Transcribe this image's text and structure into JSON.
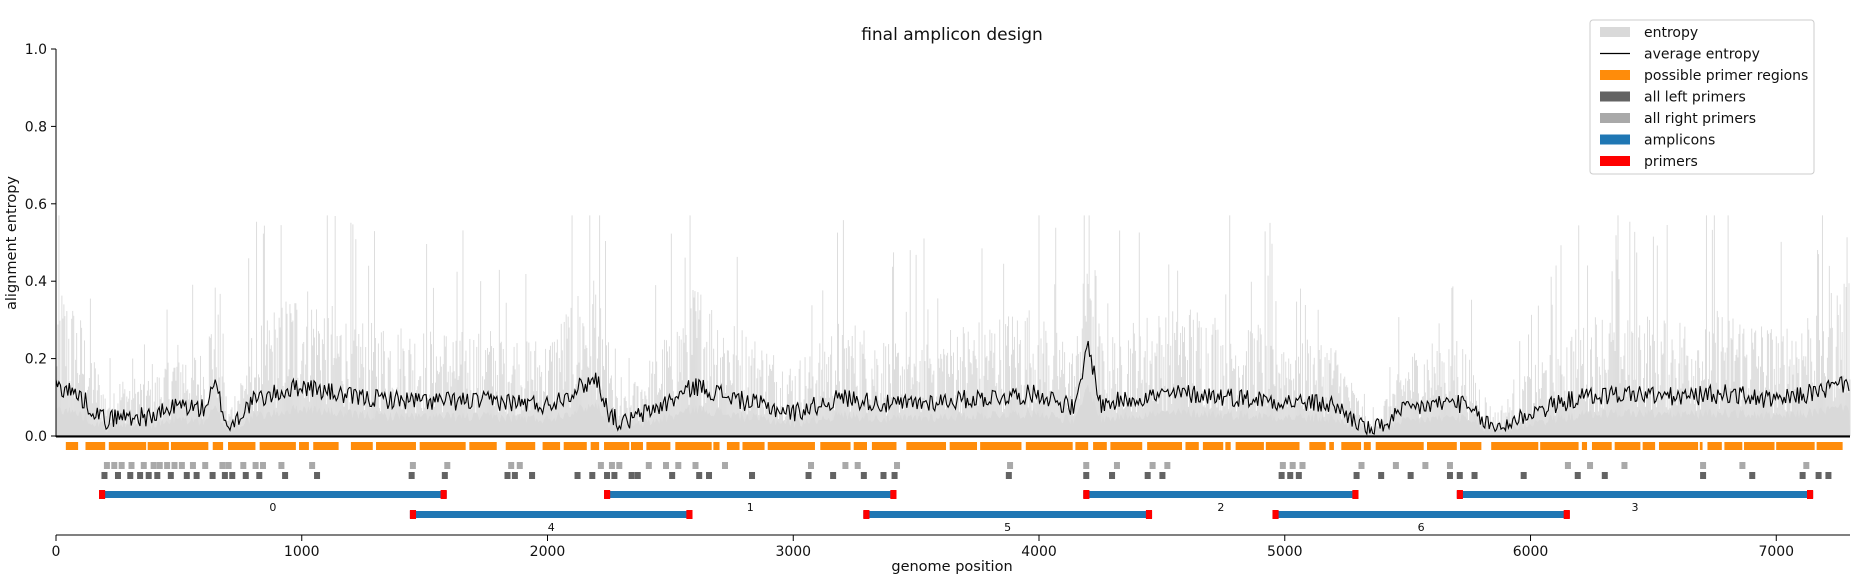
{
  "chart_data": {
    "type": "area",
    "title": "final amplicon design",
    "xlabel": "genome position",
    "ylabel": "alignment entropy",
    "xlim": [
      0,
      7300
    ],
    "ylim": [
      0,
      1.0
    ],
    "xticks": [
      0,
      1000,
      2000,
      3000,
      4000,
      5000,
      6000,
      7000
    ],
    "yticks": [
      0.0,
      0.2,
      0.4,
      0.6,
      0.8,
      1.0
    ],
    "grid": false,
    "legend_position": "top-right",
    "legend": [
      {
        "label": "entropy",
        "color": "#d9d9d9",
        "style": "patch"
      },
      {
        "label": "average entropy",
        "color": "#000000",
        "style": "line"
      },
      {
        "label": "possible primer regions",
        "color": "#ff8c0a",
        "style": "patch"
      },
      {
        "label": "all left primers",
        "color": "#636363",
        "style": "patch"
      },
      {
        "label": "all right primers",
        "color": "#a9a9a9",
        "style": "patch"
      },
      {
        "label": "amplicons",
        "color": "#1f77b4",
        "style": "patch"
      },
      {
        "label": "primers",
        "color": "#ff0000",
        "style": "patch"
      }
    ],
    "average_entropy_profile": [
      {
        "x": 0,
        "y": 0.13
      },
      {
        "x": 50,
        "y": 0.12
      },
      {
        "x": 100,
        "y": 0.1
      },
      {
        "x": 150,
        "y": 0.07
      },
      {
        "x": 200,
        "y": 0.04
      },
      {
        "x": 250,
        "y": 0.05
      },
      {
        "x": 300,
        "y": 0.05
      },
      {
        "x": 400,
        "y": 0.05
      },
      {
        "x": 500,
        "y": 0.08
      },
      {
        "x": 600,
        "y": 0.07
      },
      {
        "x": 650,
        "y": 0.13
      },
      {
        "x": 700,
        "y": 0.02
      },
      {
        "x": 800,
        "y": 0.09
      },
      {
        "x": 900,
        "y": 0.11
      },
      {
        "x": 1000,
        "y": 0.13
      },
      {
        "x": 1200,
        "y": 0.1
      },
      {
        "x": 1500,
        "y": 0.09
      },
      {
        "x": 1800,
        "y": 0.09
      },
      {
        "x": 2000,
        "y": 0.08
      },
      {
        "x": 2200,
        "y": 0.15
      },
      {
        "x": 2250,
        "y": 0.06
      },
      {
        "x": 2300,
        "y": 0.03
      },
      {
        "x": 2500,
        "y": 0.09
      },
      {
        "x": 2600,
        "y": 0.13
      },
      {
        "x": 2800,
        "y": 0.09
      },
      {
        "x": 3000,
        "y": 0.06
      },
      {
        "x": 3200,
        "y": 0.1
      },
      {
        "x": 3400,
        "y": 0.08
      },
      {
        "x": 3600,
        "y": 0.09
      },
      {
        "x": 3800,
        "y": 0.1
      },
      {
        "x": 4000,
        "y": 0.11
      },
      {
        "x": 4150,
        "y": 0.07
      },
      {
        "x": 4200,
        "y": 0.24
      },
      {
        "x": 4250,
        "y": 0.08
      },
      {
        "x": 4400,
        "y": 0.1
      },
      {
        "x": 4600,
        "y": 0.11
      },
      {
        "x": 4800,
        "y": 0.1
      },
      {
        "x": 5000,
        "y": 0.09
      },
      {
        "x": 5200,
        "y": 0.08
      },
      {
        "x": 5350,
        "y": 0.01
      },
      {
        "x": 5500,
        "y": 0.07
      },
      {
        "x": 5700,
        "y": 0.09
      },
      {
        "x": 5850,
        "y": 0.02
      },
      {
        "x": 5900,
        "y": 0.03
      },
      {
        "x": 6000,
        "y": 0.06
      },
      {
        "x": 6200,
        "y": 0.1
      },
      {
        "x": 6400,
        "y": 0.11
      },
      {
        "x": 6600,
        "y": 0.1
      },
      {
        "x": 6800,
        "y": 0.11
      },
      {
        "x": 7000,
        "y": 0.09
      },
      {
        "x": 7200,
        "y": 0.12
      },
      {
        "x": 7300,
        "y": 0.14
      }
    ],
    "primer_regions_gaps": [
      [
        90,
        120
      ],
      [
        680,
        700
      ],
      [
        1150,
        1200
      ],
      [
        1800,
        1830
      ],
      [
        1950,
        1980
      ],
      [
        2210,
        2230
      ],
      [
        2500,
        2520
      ],
      [
        2700,
        2730
      ],
      [
        3090,
        3110
      ],
      [
        3300,
        3320
      ],
      [
        3420,
        3460
      ],
      [
        4200,
        4220
      ],
      [
        4420,
        4440
      ],
      [
        4780,
        4800
      ],
      [
        5060,
        5100
      ],
      [
        5200,
        5230
      ],
      [
        5350,
        5370
      ],
      [
        5800,
        5840
      ],
      [
        6230,
        6250
      ],
      [
        6700,
        6720
      ]
    ],
    "right_primers": [
      195,
      225,
      255,
      295,
      345,
      385,
      410,
      440,
      470,
      500,
      545,
      595,
      665,
      690,
      750,
      800,
      830,
      905,
      1030,
      1440,
      1580,
      1840,
      1875,
      2205,
      2250,
      2280,
      2400,
      2470,
      2520,
      2590,
      2710,
      3060,
      3200,
      3250,
      3410,
      3870,
      4180,
      4305,
      4450,
      4510,
      4980,
      5020,
      5060,
      5300,
      5440,
      5560,
      5660,
      6140,
      6230,
      6370,
      6690,
      6850,
      7110
    ],
    "left_primers": [
      185,
      240,
      290,
      330,
      365,
      400,
      455,
      520,
      560,
      625,
      675,
      705,
      760,
      815,
      920,
      1050,
      1435,
      1570,
      1825,
      1855,
      1925,
      2110,
      2170,
      2230,
      2260,
      2330,
      2355,
      2495,
      2605,
      2645,
      2820,
      3050,
      3150,
      3275,
      3355,
      3400,
      3865,
      4180,
      4285,
      4430,
      4490,
      4975,
      5010,
      5045,
      5280,
      5380,
      5500,
      5660,
      5700,
      5760,
      5960,
      6180,
      6290,
      6690,
      6890,
      7095,
      7160,
      7200
    ],
    "amplicons": [
      {
        "label": "0",
        "start": 175,
        "end": 1590,
        "row": 0
      },
      {
        "label": "4",
        "start": 1440,
        "end": 2590,
        "row": 1
      },
      {
        "label": "1",
        "start": 2230,
        "end": 3420,
        "row": 0
      },
      {
        "label": "5",
        "start": 3285,
        "end": 4460,
        "row": 1
      },
      {
        "label": "2",
        "start": 4180,
        "end": 5300,
        "row": 0
      },
      {
        "label": "6",
        "start": 4950,
        "end": 6160,
        "row": 1
      },
      {
        "label": "3",
        "start": 5700,
        "end": 7150,
        "row": 0
      }
    ],
    "primer_length": 25
  }
}
